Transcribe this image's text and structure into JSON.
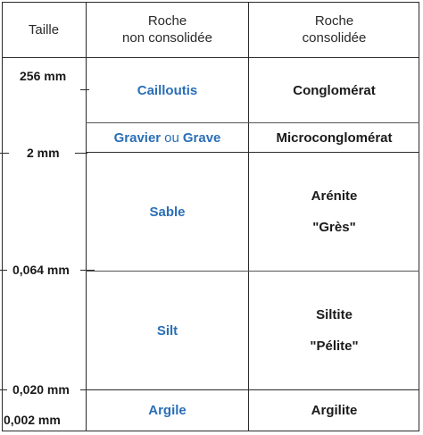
{
  "header": {
    "size_col": "Taille",
    "unconsolidated_col_line1": "Roche",
    "unconsolidated_col_line2": "non consolidée",
    "consolidated_col_line1": "Roche",
    "consolidated_col_line2": "consolidée"
  },
  "size_labels": {
    "mm256": "256 mm",
    "mm2": "2 mm",
    "mm0064": "0,064 mm",
    "mm0020": "0,020 mm",
    "mm0002": "0,002 mm"
  },
  "rows": {
    "cailloutis": {
      "unconsolidated": "Cailloutis",
      "consolidated": "Conglomérat"
    },
    "gravier": {
      "unconsolidated_a": "Gravier",
      "unconsolidated_ou": "ou",
      "unconsolidated_b": "Grave",
      "consolidated": "Microconglomérat"
    },
    "sable": {
      "unconsolidated": "Sable",
      "consolidated_line1": "Arénite",
      "consolidated_line2": "\"Grès\""
    },
    "silt": {
      "unconsolidated": "Silt",
      "consolidated_line1": "Siltite",
      "consolidated_line2": "\"Pélite\""
    },
    "argile": {
      "unconsolidated": "Argile",
      "consolidated": "Argilite"
    }
  },
  "colors": {
    "unconsolidated_text": "#2a6fb6",
    "consolidated_text": "#1a1a1a",
    "border": "#2b2b2b"
  }
}
